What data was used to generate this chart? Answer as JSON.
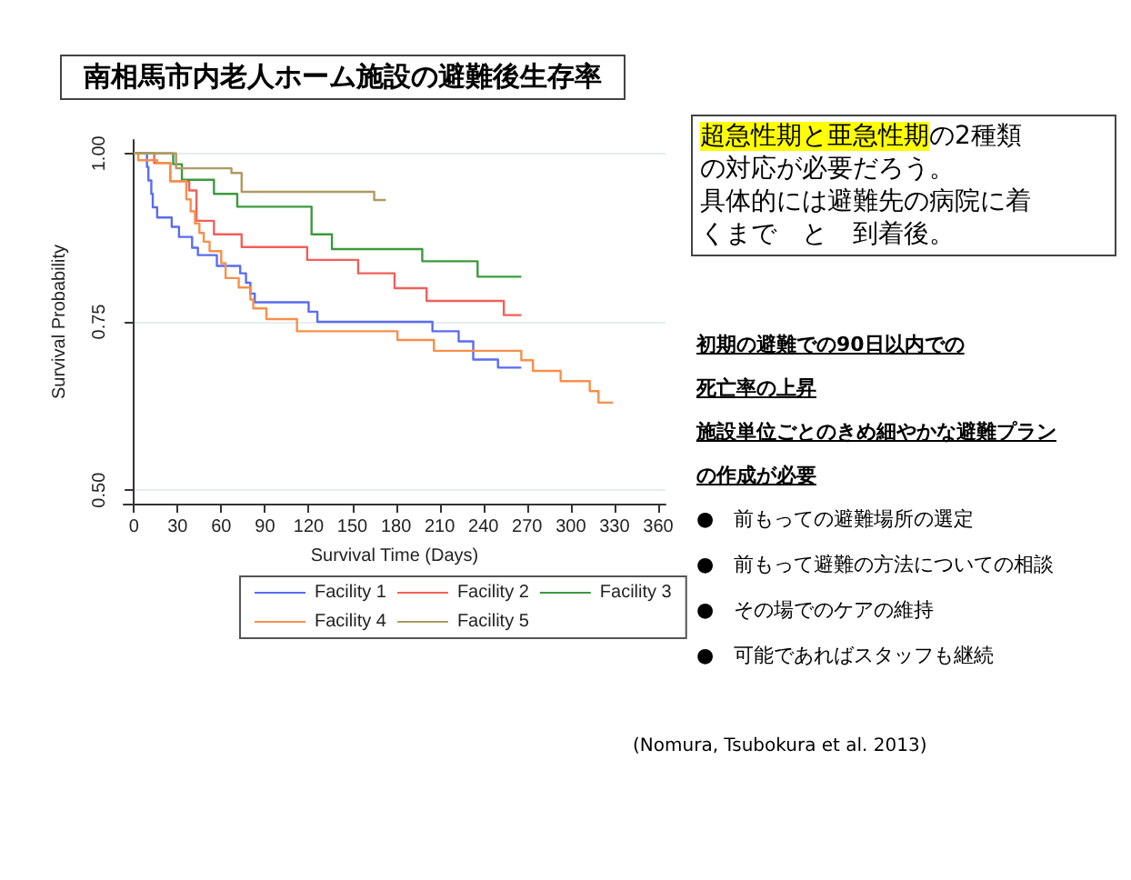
{
  "chart_data": {
    "type": "step",
    "title": "南相馬市内老人ホーム施設の避難後生存率",
    "xlabel": "Survival Time (Days)",
    "ylabel": "Survival Probability",
    "xlim": [
      -7,
      365
    ],
    "xticks": [
      0,
      30,
      60,
      90,
      120,
      150,
      180,
      210,
      240,
      270,
      300,
      330,
      360
    ],
    "ylim": [
      0.48,
      1.02
    ],
    "yticks": [
      {
        "value": 0.5,
        "label": "0.50"
      },
      {
        "value": 0.75,
        "label": "0.75"
      },
      {
        "value": 1,
        "label": "1.00"
      }
    ],
    "grid": "y",
    "legend": "bottom",
    "marker": "none",
    "line_style": "solid",
    "series": [
      {
        "name": "Facility 1",
        "color": "#5a6cf0",
        "x": [
          0,
          9,
          10,
          12,
          13,
          16,
          26,
          31,
          40,
          44,
          57,
          73,
          77,
          80,
          83,
          120,
          126,
          205,
          223,
          233,
          250,
          266
        ],
        "values": [
          1,
          0.98,
          0.96,
          0.94,
          0.92,
          0.905,
          0.891,
          0.876,
          0.86,
          0.849,
          0.833,
          0.822,
          0.808,
          0.792,
          0.779,
          0.765,
          0.75,
          0.736,
          0.721,
          0.694,
          0.682,
          0.682
        ]
      },
      {
        "name": "Facility 2",
        "color": "#f0605a",
        "x": [
          0,
          14,
          25,
          38,
          43,
          55,
          74,
          119,
          154,
          179,
          201,
          254,
          266
        ],
        "values": [
          1,
          0.986,
          0.959,
          0.945,
          0.9,
          0.88,
          0.861,
          0.842,
          0.822,
          0.8,
          0.781,
          0.76,
          0.76
        ]
      },
      {
        "name": "Facility 3",
        "color": "#3c9a3c",
        "x": [
          0,
          27,
          33,
          55,
          71,
          122,
          136,
          198,
          236,
          266
        ],
        "values": [
          1,
          0.984,
          0.961,
          0.94,
          0.921,
          0.88,
          0.858,
          0.84,
          0.817,
          0.817
        ]
      },
      {
        "name": "Facility 4",
        "color": "#f5904a",
        "x": [
          0,
          3,
          16,
          25,
          36,
          39,
          42,
          45,
          48,
          52,
          60,
          63,
          72,
          80,
          82,
          91,
          112,
          181,
          206,
          266,
          274,
          293,
          313,
          319,
          329
        ],
        "values": [
          1,
          0.99,
          0.986,
          0.959,
          0.932,
          0.914,
          0.896,
          0.882,
          0.869,
          0.855,
          0.837,
          0.815,
          0.801,
          0.783,
          0.77,
          0.754,
          0.736,
          0.723,
          0.707,
          0.693,
          0.677,
          0.662,
          0.647,
          0.63,
          0.63
        ]
      },
      {
        "name": "Facility 5",
        "color": "#b09a60",
        "x": [
          0,
          29,
          67,
          74,
          165,
          173
        ],
        "values": [
          1,
          0.978,
          0.971,
          0.943,
          0.931,
          0.931
        ]
      }
    ],
    "annotations": [
      "超急性期と亜急性期",
      "の2種類の対応が必要だろう。",
      "具体的には避難先の病院に着くまで　と　到着後。",
      "初期の避難での90日以内での",
      "死亡率の上昇",
      "施設単位ごとのきめ細やかな避難プラン",
      "の作成が必要",
      "●　前もっての避難場所の選定",
      "●　前もって避難の方法についての相談",
      "●　その場でのケアの維持",
      "●　可能であればスタッフも継続",
      "(Nomura, Tsubokura et al. 2013)"
    ]
  }
}
